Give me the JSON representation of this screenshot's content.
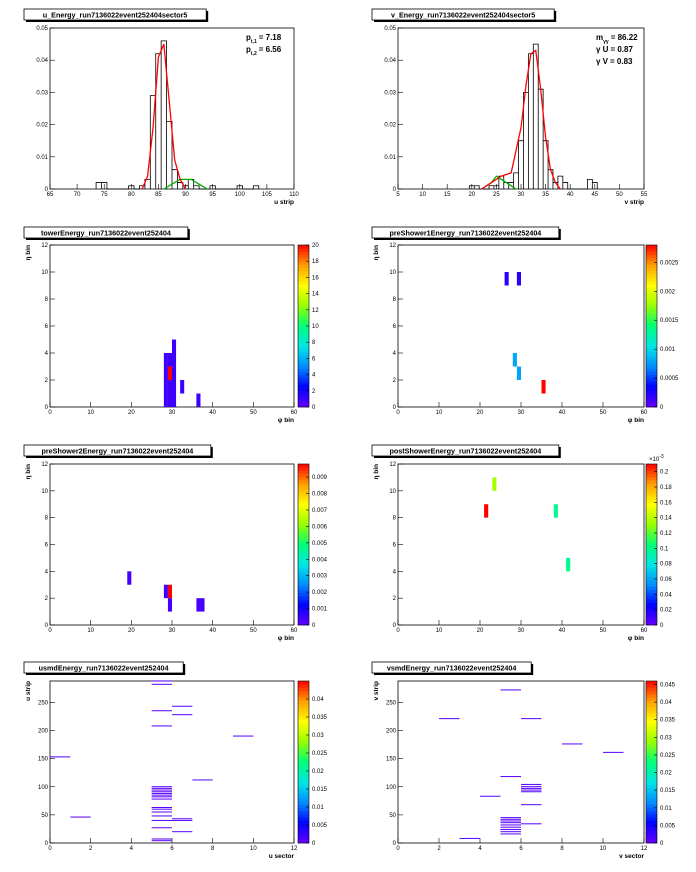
{
  "chart_data": [
    {
      "type": "histogram",
      "title": "u_Energy_run7136022event252404sector5",
      "xlabel": "u strip",
      "ylabel": "",
      "xlim": [
        65,
        110
      ],
      "ylim": [
        0,
        0.05
      ],
      "xticks": [
        65,
        70,
        75,
        80,
        85,
        90,
        95,
        100,
        105,
        110
      ],
      "yticks": [
        0,
        0.01,
        0.02,
        0.03,
        0.04,
        0.05
      ],
      "annotations": [
        {
          "name": "p",
          "sub": "t,1",
          "value": "= 7.18"
        },
        {
          "name": "p",
          "sub": "t,2",
          "value": "= 6.56"
        }
      ],
      "hist": [
        [
          74,
          0.002
        ],
        [
          75,
          0.002
        ],
        [
          80,
          0.001
        ],
        [
          82,
          0.001
        ],
        [
          83,
          0.003
        ],
        [
          84,
          0.029
        ],
        [
          85,
          0.042
        ],
        [
          86,
          0.046
        ],
        [
          87,
          0.021
        ],
        [
          88,
          0.006
        ],
        [
          89,
          0.002
        ],
        [
          90,
          0.001
        ],
        [
          91,
          0.003
        ],
        [
          92,
          0.001
        ],
        [
          95,
          0.001
        ],
        [
          100,
          0.001
        ],
        [
          103,
          0.001
        ]
      ],
      "fit_total": [
        [
          82,
          0.0
        ],
        [
          83,
          0.004
        ],
        [
          84,
          0.019
        ],
        [
          85,
          0.041
        ],
        [
          86,
          0.045
        ],
        [
          87,
          0.027
        ],
        [
          88,
          0.009
        ],
        [
          89,
          0.003
        ],
        [
          90,
          0.0
        ]
      ],
      "fit_peak2": [
        [
          86,
          0.0
        ],
        [
          87,
          0.001
        ],
        [
          88,
          0.002
        ],
        [
          89,
          0.003
        ],
        [
          90,
          0.003
        ],
        [
          91,
          0.003
        ],
        [
          92,
          0.002
        ],
        [
          93,
          0.001
        ],
        [
          94,
          0.0
        ]
      ]
    },
    {
      "type": "histogram",
      "title": "v_Energy_run7136022event252404sector5",
      "xlabel": "v strip",
      "ylabel": "",
      "xlim": [
        5,
        55
      ],
      "ylim": [
        0,
        0.05
      ],
      "xticks": [
        5,
        10,
        15,
        20,
        25,
        30,
        35,
        40,
        45,
        50,
        55
      ],
      "yticks": [
        0,
        0.01,
        0.02,
        0.03,
        0.04,
        0.05
      ],
      "annotations": [
        {
          "name": "m",
          "sub": "γγ",
          "value": "= 86.22"
        },
        {
          "name": "γ U",
          "sub": "",
          "value": "= 0.87"
        },
        {
          "name": "γ V",
          "sub": "",
          "value": "= 0.83"
        }
      ],
      "hist": [
        [
          20,
          0.001
        ],
        [
          21,
          0.001
        ],
        [
          24,
          0.001
        ],
        [
          25,
          0.001
        ],
        [
          26,
          0.004
        ],
        [
          27,
          0.002
        ],
        [
          28,
          0.002
        ],
        [
          29,
          0.005
        ],
        [
          30,
          0.015
        ],
        [
          31,
          0.03
        ],
        [
          32,
          0.042
        ],
        [
          33,
          0.045
        ],
        [
          34,
          0.031
        ],
        [
          35,
          0.015
        ],
        [
          36,
          0.006
        ],
        [
          37,
          0.002
        ],
        [
          38,
          0.004
        ],
        [
          39,
          0.002
        ],
        [
          44,
          0.003
        ],
        [
          45,
          0.002
        ]
      ],
      "fit_total": [
        [
          22,
          0.0
        ],
        [
          24,
          0.002
        ],
        [
          26,
          0.004
        ],
        [
          28,
          0.005
        ],
        [
          30,
          0.019
        ],
        [
          31,
          0.032
        ],
        [
          32,
          0.042
        ],
        [
          33,
          0.043
        ],
        [
          34,
          0.031
        ],
        [
          35,
          0.016
        ],
        [
          36,
          0.006
        ],
        [
          37,
          0.002
        ],
        [
          38,
          0.0
        ]
      ],
      "fit_peak2": [
        [
          22,
          0.0
        ],
        [
          23,
          0.001
        ],
        [
          24,
          0.002
        ],
        [
          25,
          0.004
        ],
        [
          26,
          0.003
        ],
        [
          27,
          0.002
        ],
        [
          28,
          0.001
        ],
        [
          29,
          0.0
        ]
      ]
    },
    {
      "type": "heatmap",
      "title": "towerEnergy_run7136022event252404",
      "xlabel": "φ bin",
      "ylabel": "η bin",
      "xlim": [
        0,
        60
      ],
      "ylim": [
        0,
        12
      ],
      "xticks": [
        0,
        10,
        20,
        30,
        40,
        50,
        60
      ],
      "yticks": [
        0,
        2,
        4,
        6,
        8,
        10,
        12
      ],
      "zlim": [
        0,
        20
      ],
      "zticks": [
        "0",
        "2",
        "4",
        "6",
        "8",
        "10",
        "12",
        "14",
        "16",
        "18",
        "20"
      ],
      "zexp": "",
      "cells": [
        [
          28,
          0,
          1
        ],
        [
          28,
          1,
          1
        ],
        [
          28,
          2,
          1
        ],
        [
          28,
          3,
          1
        ],
        [
          29,
          0,
          1
        ],
        [
          29,
          1,
          1
        ],
        [
          29,
          2,
          20
        ],
        [
          29,
          3,
          1
        ],
        [
          30,
          0,
          1
        ],
        [
          30,
          1,
          1
        ],
        [
          30,
          2,
          1
        ],
        [
          30,
          3,
          1
        ],
        [
          30,
          4,
          1
        ],
        [
          32,
          1,
          1
        ],
        [
          36,
          0,
          1
        ]
      ]
    },
    {
      "type": "heatmap",
      "title": "preShower1Energy_run7136022event252404",
      "xlabel": "φ bin",
      "ylabel": "η bin",
      "xlim": [
        0,
        60
      ],
      "ylim": [
        0,
        12
      ],
      "xticks": [
        0,
        10,
        20,
        30,
        40,
        50,
        60
      ],
      "yticks": [
        0,
        2,
        4,
        6,
        8,
        10,
        12
      ],
      "zlim": [
        0,
        0.0028
      ],
      "zticks": [
        "0",
        "0.0005",
        "0.001",
        "0.0015",
        "0.002",
        "0.0025"
      ],
      "zexp": "",
      "cells": [
        [
          26,
          9,
          0.0002
        ],
        [
          29,
          9,
          0.0002
        ],
        [
          28,
          3,
          0.0008
        ],
        [
          29,
          2,
          0.0008
        ],
        [
          35,
          1,
          0.0028
        ]
      ]
    },
    {
      "type": "heatmap",
      "title": "preShower2Energy_run7136022event252404",
      "xlabel": "φ bin",
      "ylabel": "η bin",
      "xlim": [
        0,
        60
      ],
      "ylim": [
        0,
        12
      ],
      "xticks": [
        0,
        10,
        20,
        30,
        40,
        50,
        60
      ],
      "yticks": [
        0,
        2,
        4,
        6,
        8,
        10,
        12
      ],
      "zlim": [
        0,
        0.0098
      ],
      "zticks": [
        "0",
        "0.001",
        "0.002",
        "0.003",
        "0.004",
        "0.005",
        "0.006",
        "0.007",
        "0.008",
        "0.009"
      ],
      "zexp": "",
      "cells": [
        [
          19,
          3,
          0.0004
        ],
        [
          28,
          2,
          0.0004
        ],
        [
          29,
          2,
          0.0098
        ],
        [
          29,
          1,
          0.0004
        ],
        [
          36,
          1,
          0.0004
        ],
        [
          37,
          1,
          0.0004
        ]
      ]
    },
    {
      "type": "heatmap",
      "title": "postShowerEnergy_run7136022event252404",
      "xlabel": "φ bin",
      "ylabel": "η bin",
      "xlim": [
        0,
        60
      ],
      "ylim": [
        0,
        12
      ],
      "xticks": [
        0,
        10,
        20,
        30,
        40,
        50,
        60
      ],
      "yticks": [
        0,
        2,
        4,
        6,
        8,
        10,
        12
      ],
      "zlim": [
        0,
        0.00021
      ],
      "zticks": [
        "0",
        "0.02",
        "0.04",
        "0.06",
        "0.08",
        "0.1",
        "0.12",
        "0.14",
        "0.16",
        "0.18",
        "0.2"
      ],
      "zexp": "×10",
      "zexp_power": "-3",
      "cells": [
        [
          23,
          10,
          0.000135
        ],
        [
          21,
          8,
          0.00021
        ],
        [
          38,
          8,
          0.0001
        ],
        [
          41,
          4,
          0.0001
        ]
      ]
    },
    {
      "type": "heatmap",
      "title": "usmdEnergy_run7136022event252404",
      "xlabel": "u sector",
      "ylabel": "u strip",
      "xlim": [
        0,
        12
      ],
      "ylim": [
        0,
        288
      ],
      "xticks": [
        0,
        2,
        4,
        6,
        8,
        10,
        12
      ],
      "yticks": [
        0,
        50,
        100,
        150,
        200,
        250
      ],
      "zlim": [
        0,
        0.045
      ],
      "zticks": [
        "0",
        "0.005",
        "0.01",
        "0.015",
        "0.02",
        "0.025",
        "0.03",
        "0.035",
        "0.04"
      ],
      "zexp": "",
      "strips": [
        [
          0,
          153
        ],
        [
          1,
          46
        ],
        [
          5,
          288
        ],
        [
          5,
          282
        ],
        [
          5,
          235
        ],
        [
          5,
          208
        ],
        [
          6,
          243
        ],
        [
          6,
          228
        ],
        [
          7,
          112
        ],
        [
          9,
          190
        ],
        [
          5,
          100
        ],
        [
          5,
          97
        ],
        [
          5,
          94
        ],
        [
          5,
          91
        ],
        [
          5,
          88
        ],
        [
          5,
          85
        ],
        [
          5,
          82
        ],
        [
          5,
          78
        ],
        [
          5,
          63
        ],
        [
          5,
          60
        ],
        [
          5,
          55
        ],
        [
          5,
          48
        ],
        [
          5,
          40
        ],
        [
          5,
          27
        ],
        [
          5,
          7
        ],
        [
          5,
          4
        ],
        [
          6,
          43
        ],
        [
          6,
          40
        ],
        [
          6,
          20
        ]
      ]
    },
    {
      "type": "heatmap",
      "title": "vsmdEnergy_run7136022event252404",
      "xlabel": "v sector",
      "ylabel": "v strip",
      "xlim": [
        0,
        12
      ],
      "ylim": [
        0,
        288
      ],
      "xticks": [
        0,
        2,
        4,
        6,
        8,
        10,
        12
      ],
      "yticks": [
        0,
        50,
        100,
        150,
        200,
        250
      ],
      "zlim": [
        0,
        0.046
      ],
      "zticks": [
        "0",
        "0.005",
        "0.01",
        "0.015",
        "0.02",
        "0.025",
        "0.03",
        "0.035",
        "0.04",
        "0.045"
      ],
      "zexp": "",
      "strips": [
        [
          2,
          221
        ],
        [
          5,
          272
        ],
        [
          6,
          221
        ],
        [
          8,
          176
        ],
        [
          10,
          161
        ],
        [
          5,
          118
        ],
        [
          6,
          104
        ],
        [
          6,
          100
        ],
        [
          6,
          97
        ],
        [
          6,
          94
        ],
        [
          6,
          91
        ],
        [
          6,
          68
        ],
        [
          4,
          83
        ],
        [
          5,
          45
        ],
        [
          5,
          42
        ],
        [
          5,
          39
        ],
        [
          5,
          36
        ],
        [
          5,
          32
        ],
        [
          5,
          28
        ],
        [
          5,
          24
        ],
        [
          5,
          20
        ],
        [
          5,
          16
        ],
        [
          6,
          34
        ],
        [
          3,
          8
        ]
      ]
    }
  ]
}
